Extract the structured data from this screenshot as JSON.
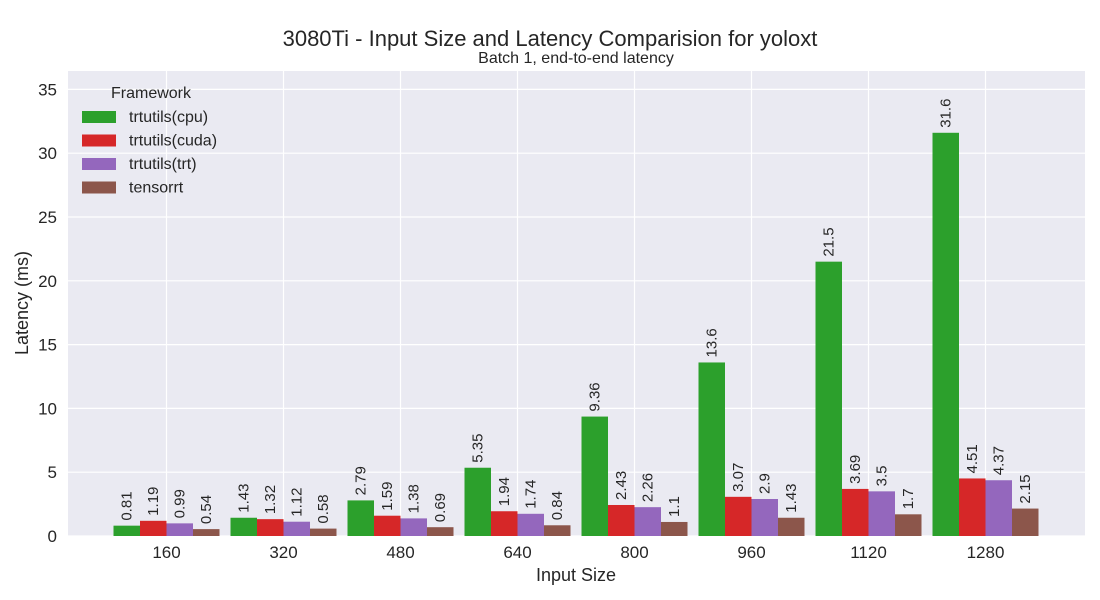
{
  "chart_data": {
    "type": "bar",
    "title": "3080Ti - Input Size and Latency Comparision for yoloxt",
    "subtitle": "Batch 1, end-to-end latency",
    "xlabel": "Input Size",
    "ylabel": "Latency (ms)",
    "categories": [
      "160",
      "320",
      "480",
      "640",
      "800",
      "960",
      "1120",
      "1280"
    ],
    "ylim": [
      0,
      36
    ],
    "yticks": [
      0,
      5,
      10,
      15,
      20,
      25,
      30,
      35
    ],
    "grid": true,
    "legend": {
      "title": "Framework",
      "placement": "top-left"
    },
    "series": [
      {
        "name": "trtutils(cpu)",
        "color": "#2ca02c",
        "values": [
          0.81,
          1.43,
          2.79,
          5.35,
          9.36,
          13.6,
          21.5,
          31.6
        ],
        "labels": [
          "0.81",
          "1.43",
          "2.79",
          "5.35",
          "9.36",
          "13.6",
          "21.5",
          "31.6"
        ]
      },
      {
        "name": "trtutils(cuda)",
        "color": "#d62728",
        "values": [
          1.19,
          1.32,
          1.59,
          1.94,
          2.43,
          3.07,
          3.69,
          4.51
        ],
        "labels": [
          "1.19",
          "1.32",
          "1.59",
          "1.94",
          "2.43",
          "3.07",
          "3.69",
          "4.51"
        ]
      },
      {
        "name": "trtutils(trt)",
        "color": "#9467bd",
        "values": [
          0.99,
          1.12,
          1.38,
          1.74,
          2.26,
          2.9,
          3.5,
          4.37
        ],
        "labels": [
          "0.99",
          "1.12",
          "1.38",
          "1.74",
          "2.26",
          "2.9",
          "3.5",
          "4.37"
        ]
      },
      {
        "name": "tensorrt",
        "color": "#8c564b",
        "values": [
          0.54,
          0.58,
          0.69,
          0.84,
          1.1,
          1.43,
          1.7,
          2.15
        ],
        "labels": [
          "0.54",
          "0.58",
          "0.69",
          "0.84",
          "1.1",
          "1.43",
          "1.7",
          "2.15"
        ]
      }
    ]
  }
}
